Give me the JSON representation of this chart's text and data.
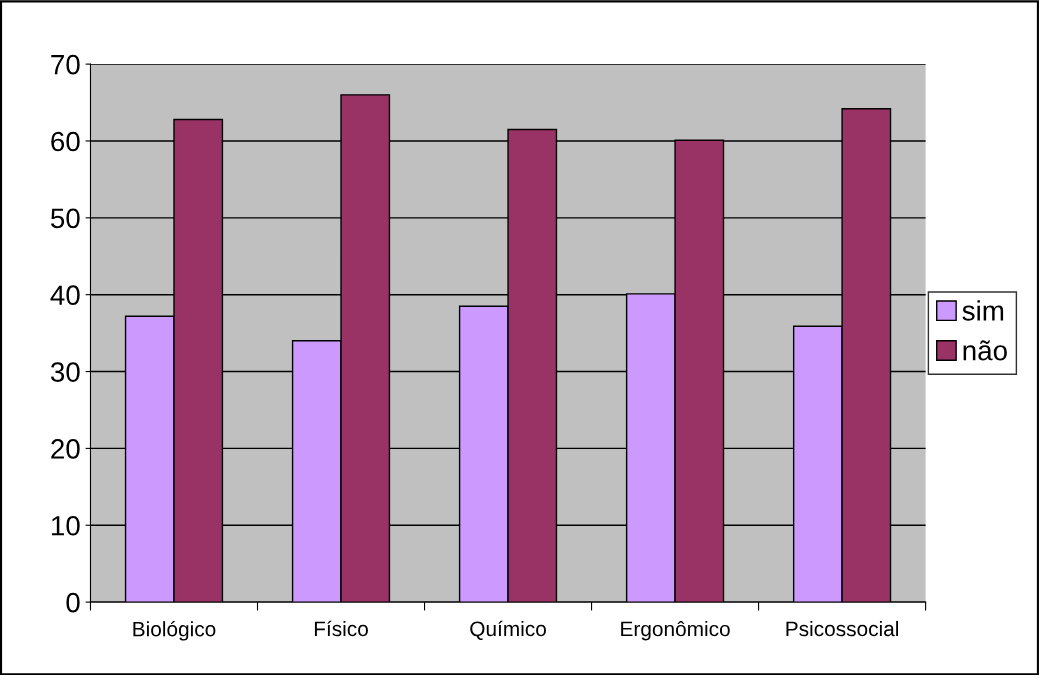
{
  "chart_data": {
    "type": "bar",
    "categories": [
      "Biológico",
      "Físico",
      "Químico",
      "Ergonômico",
      "Psicossocial"
    ],
    "series": [
      {
        "name": "sim",
        "color": "#cc99ff",
        "values": [
          37.2,
          34,
          38.5,
          40.1,
          35.9
        ]
      },
      {
        "name": "não",
        "color": "#993366",
        "values": [
          62.8,
          66,
          61.5,
          60.1,
          64.2
        ]
      }
    ],
    "ylim": [
      0,
      70
    ],
    "yticks": [
      0,
      10,
      20,
      30,
      40,
      50,
      60,
      70
    ],
    "grid": "y",
    "legend": "right"
  }
}
